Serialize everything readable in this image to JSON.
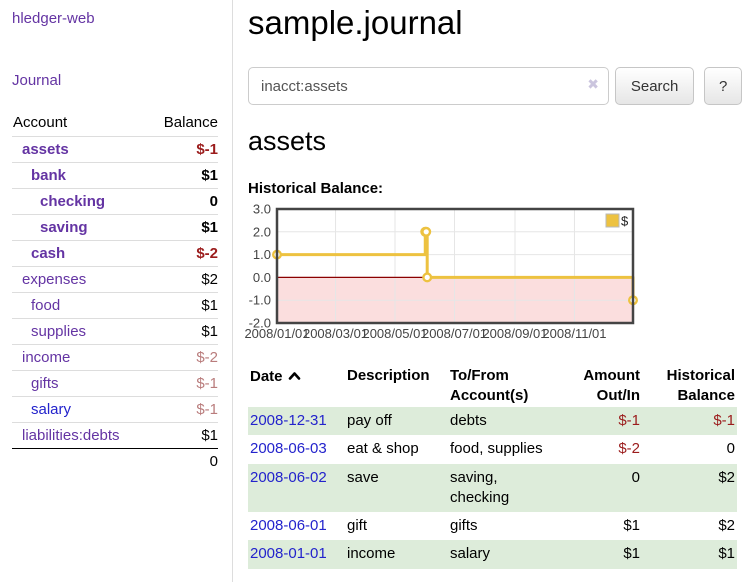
{
  "sidebar": {
    "brand": "hledger-web",
    "journal_link": "Journal",
    "accounts": {
      "col_account": "Account",
      "col_balance": "Balance",
      "rows": [
        {
          "name": "assets",
          "indent": 1,
          "emph": true,
          "balance": "$-1",
          "neg": "strong",
          "link": "purple"
        },
        {
          "name": "bank",
          "indent": 2,
          "emph": true,
          "balance": "$1",
          "neg": "none",
          "link": "purple"
        },
        {
          "name": "checking",
          "indent": 3,
          "emph": true,
          "balance": "0",
          "neg": "none",
          "link": "purple"
        },
        {
          "name": "saving",
          "indent": 3,
          "emph": true,
          "balance": "$1",
          "neg": "none",
          "link": "purple"
        },
        {
          "name": "cash",
          "indent": 2,
          "emph": true,
          "balance": "$-2",
          "neg": "strong",
          "link": "purple"
        },
        {
          "name": "expenses",
          "indent": 1,
          "emph": false,
          "balance": "$2",
          "neg": "none",
          "link": "purple"
        },
        {
          "name": "food",
          "indent": 2,
          "emph": false,
          "balance": "$1",
          "neg": "none",
          "link": "purple"
        },
        {
          "name": "supplies",
          "indent": 2,
          "emph": false,
          "balance": "$1",
          "neg": "none",
          "link": "purple"
        },
        {
          "name": "income",
          "indent": 1,
          "emph": false,
          "balance": "$-2",
          "neg": "soft",
          "link": "purple"
        },
        {
          "name": "gifts",
          "indent": 2,
          "emph": false,
          "balance": "$-1",
          "neg": "soft",
          "link": "purple"
        },
        {
          "name": "salary",
          "indent": 2,
          "emph": false,
          "balance": "$-1",
          "neg": "soft",
          "link": "blue"
        },
        {
          "name": "liabilities:debts",
          "indent": 1,
          "emph": false,
          "balance": "$1",
          "neg": "none",
          "link": "purple"
        }
      ],
      "total": "0"
    }
  },
  "main": {
    "title": "sample.journal",
    "search": {
      "value": "inacct:assets",
      "clear_icon": "✖",
      "search_button": "Search",
      "help_button": "?"
    },
    "account_heading": "assets",
    "section_label": "Historical Balance:",
    "register": {
      "headers": {
        "date": "Date",
        "sort_icon": "chevron-up",
        "description": "Description",
        "tofrom": [
          "To/From",
          "Account(s)"
        ],
        "amount": [
          "Amount",
          "Out/In"
        ],
        "balance": [
          "Historical",
          "Balance"
        ]
      },
      "rows": [
        {
          "date": "2008-12-31",
          "description": "pay off",
          "tofrom": "debts",
          "amount": "$-1",
          "amount_neg": true,
          "balance": "$-1",
          "balance_neg": true
        },
        {
          "date": "2008-06-03",
          "description": "eat & shop",
          "tofrom": "food, supplies",
          "amount": "$-2",
          "amount_neg": true,
          "balance": "0",
          "balance_neg": false
        },
        {
          "date": "2008-06-02",
          "description": "save",
          "tofrom": "saving, checking",
          "amount": "0",
          "amount_neg": false,
          "balance": "$2",
          "balance_neg": false
        },
        {
          "date": "2008-06-01",
          "description": "gift",
          "tofrom": "gifts",
          "amount": "$1",
          "amount_neg": false,
          "balance": "$2",
          "balance_neg": false
        },
        {
          "date": "2008-01-01",
          "description": "income",
          "tofrom": "salary",
          "amount": "$1",
          "amount_neg": false,
          "balance": "$1",
          "balance_neg": false
        }
      ]
    }
  },
  "chart_data": {
    "type": "line",
    "step": true,
    "title": "Historical Balance",
    "series": [
      {
        "name": "$",
        "color": "#edc240",
        "points": [
          [
            "2008-01-01",
            1
          ],
          [
            "2008-06-01",
            2
          ],
          [
            "2008-06-02",
            2
          ],
          [
            "2008-06-03",
            0
          ],
          [
            "2008-12-31",
            -1
          ]
        ]
      }
    ],
    "x_range": [
      "2008-01-01",
      "2008-12-31"
    ],
    "ylim": [
      -2,
      3
    ],
    "yticks": [
      "3.0",
      "2.0",
      "1.0",
      "0.0",
      "-1.0",
      "-2.0"
    ],
    "xticks": [
      "2008/01/01",
      "2008/03/01",
      "2008/05/01",
      "2008/07/01",
      "2008/09/01",
      "2008/11/01"
    ],
    "legend": {
      "label": "$",
      "position": "top-right"
    },
    "grid": true,
    "colors": {
      "border": "#444444",
      "gridline": "#e6e6e6",
      "zero_line": "#8b0000",
      "negative_region": "#fbdede",
      "tick_text": "#444444",
      "marker_fill": "#ffffff"
    }
  }
}
